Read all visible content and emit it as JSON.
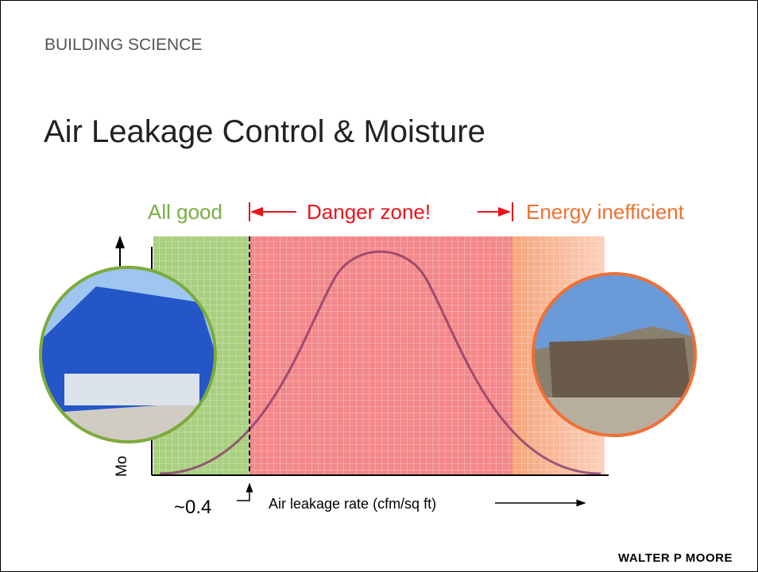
{
  "header": {
    "section": "BUILDING SCIENCE",
    "title": "Air Leakage Control & Moisture"
  },
  "zones": {
    "left": "All good",
    "middle": "Danger zone!",
    "right": "Energy inefficient"
  },
  "axes": {
    "y_label": "Mo",
    "x_label": "Air leakage rate (cfm/sq ft)",
    "marker": "~0.4"
  },
  "footer": {
    "logo": "WALTER P MOORE"
  }
}
